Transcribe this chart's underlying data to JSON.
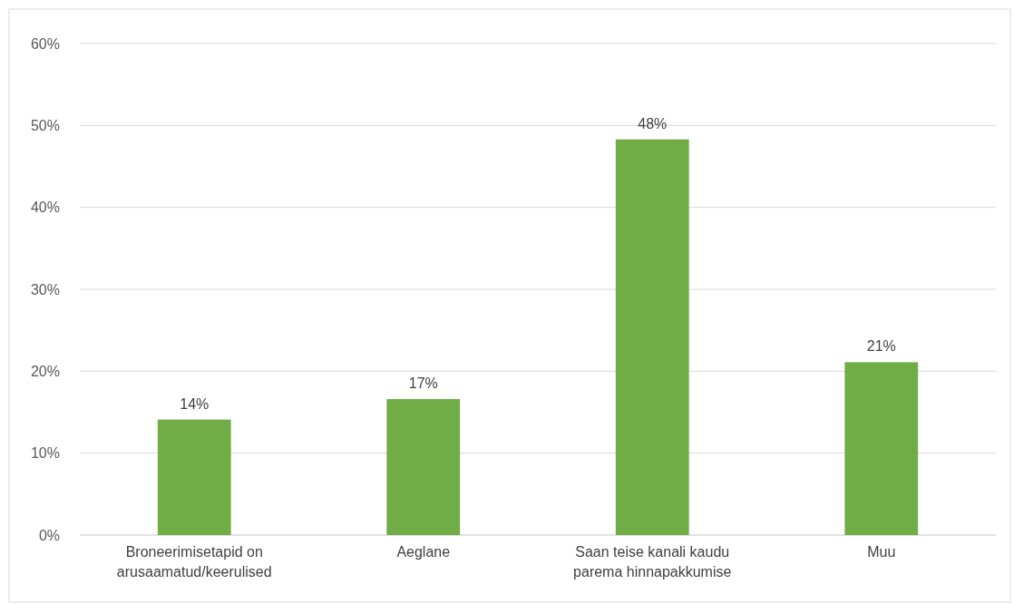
{
  "chart_data": {
    "type": "bar",
    "categories": [
      "Broneerimisetapid on arusaamatud/keerulised",
      "Aeglane",
      "Saan teise kanali kaudu parema hinnapakkumise",
      "Muu"
    ],
    "values": [
      14.1,
      16.6,
      48.3,
      21.1
    ],
    "value_labels": [
      "14%",
      "17%",
      "48%",
      "21%"
    ],
    "color": "#70ad47",
    "ylim": [
      0,
      60
    ],
    "yticks": [
      {
        "value": 0,
        "label": "0%"
      },
      {
        "value": 10,
        "label": "10%"
      },
      {
        "value": 20,
        "label": "20%"
      },
      {
        "value": 30,
        "label": "30%"
      },
      {
        "value": 40,
        "label": "40%"
      },
      {
        "value": 50,
        "label": "50%"
      },
      {
        "value": 60,
        "label": "60%"
      }
    ],
    "grid": "y"
  }
}
